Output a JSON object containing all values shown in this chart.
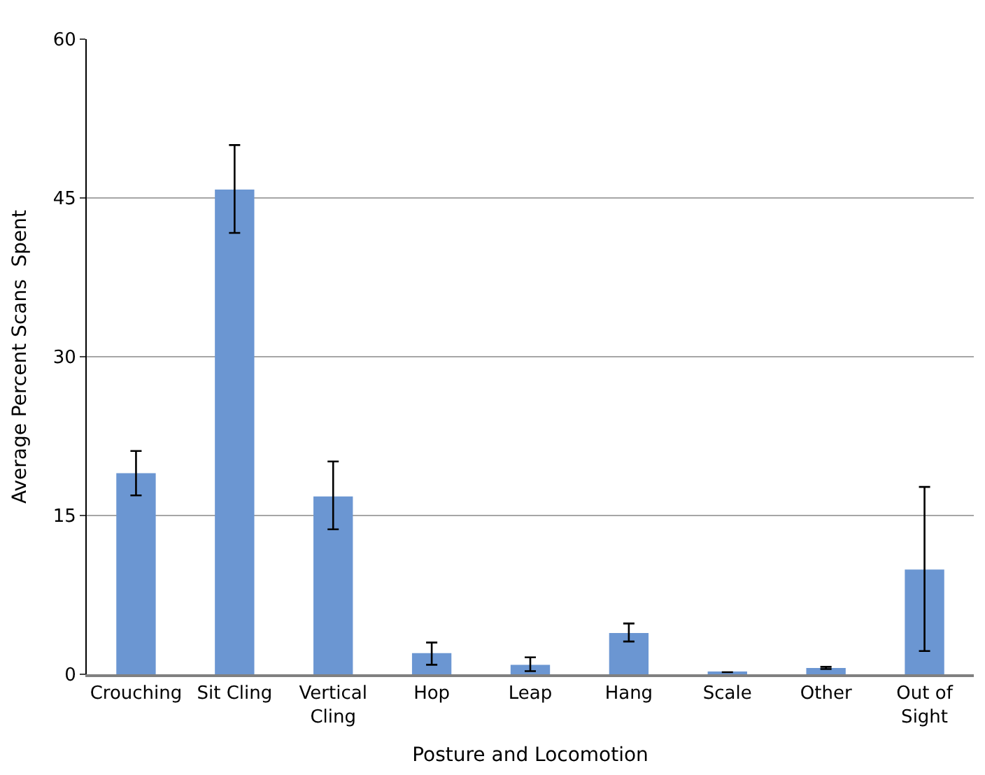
{
  "chart_data": {
    "type": "bar",
    "xlabel": "Posture and Locomotion",
    "ylabel": "Average Percent Scans  Spent",
    "categories": [
      "Crouching",
      "Sit Cling",
      "Vertical\nCling",
      "Hop",
      "Leap",
      "Hang",
      "Scale",
      "Other",
      "Out of\nSight"
    ],
    "values": [
      19,
      45.8,
      16.8,
      2.0,
      0.9,
      3.9,
      0.2,
      0.6,
      9.9
    ],
    "errors": [
      [
        16.9,
        21.1
      ],
      [
        41.7,
        50.0
      ],
      [
        13.7,
        20.1
      ],
      [
        0.9,
        3.0
      ],
      [
        0.3,
        1.6
      ],
      [
        3.1,
        4.8
      ],
      null,
      [
        0.5,
        0.7
      ],
      [
        2.2,
        17.7
      ]
    ],
    "color": "#6b96d2",
    "ylim": [
      0,
      60
    ],
    "yticks": [
      0,
      15,
      30,
      45,
      60
    ],
    "grid": "y"
  }
}
